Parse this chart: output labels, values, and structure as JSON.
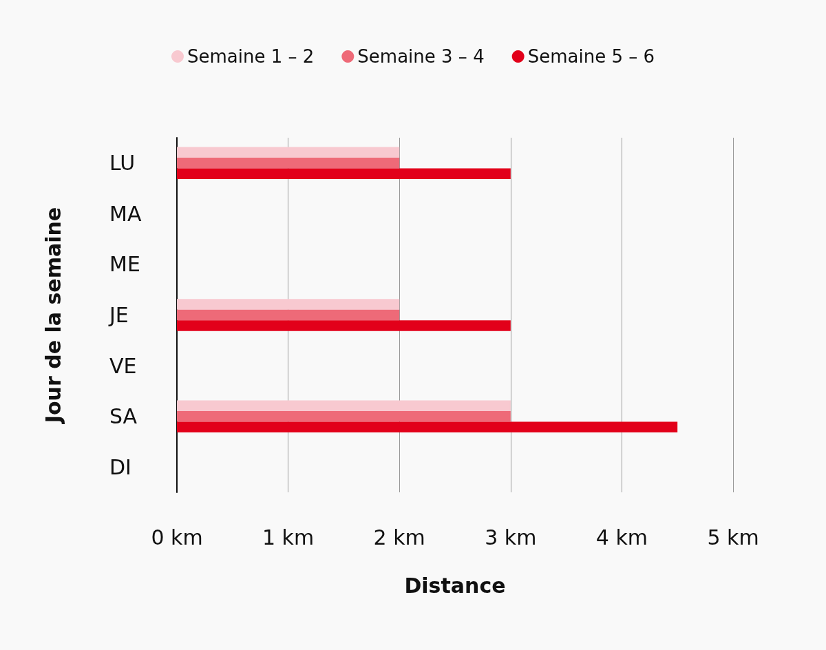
{
  "chart_data": {
    "type": "bar",
    "orientation": "horizontal",
    "xlabel": "Distance",
    "ylabel": "Jour de la semaine",
    "categories": [
      "LU",
      "MA",
      "ME",
      "JE",
      "VE",
      "SA",
      "DI"
    ],
    "series": [
      {
        "name": "Semaine 1 – 2",
        "color": "#f8c9d0",
        "values": [
          2,
          null,
          null,
          2,
          null,
          3,
          null
        ]
      },
      {
        "name": "Semaine 3 – 4",
        "color": "#ee6a78",
        "values": [
          2,
          null,
          null,
          2,
          null,
          3,
          null
        ]
      },
      {
        "name": "Semaine 5 – 6",
        "color": "#e2001a",
        "values": [
          3,
          null,
          null,
          3,
          null,
          4.5,
          null
        ]
      }
    ],
    "xlim": [
      0,
      5
    ],
    "xticks": [
      {
        "value": 0,
        "label": "0 km"
      },
      {
        "value": 1,
        "label": "1 km"
      },
      {
        "value": 2,
        "label": "2 km"
      },
      {
        "value": 3,
        "label": "3 km"
      },
      {
        "value": 4,
        "label": "4 km"
      },
      {
        "value": 5,
        "label": "5 km"
      }
    ],
    "grid": "x",
    "legend": "top"
  }
}
